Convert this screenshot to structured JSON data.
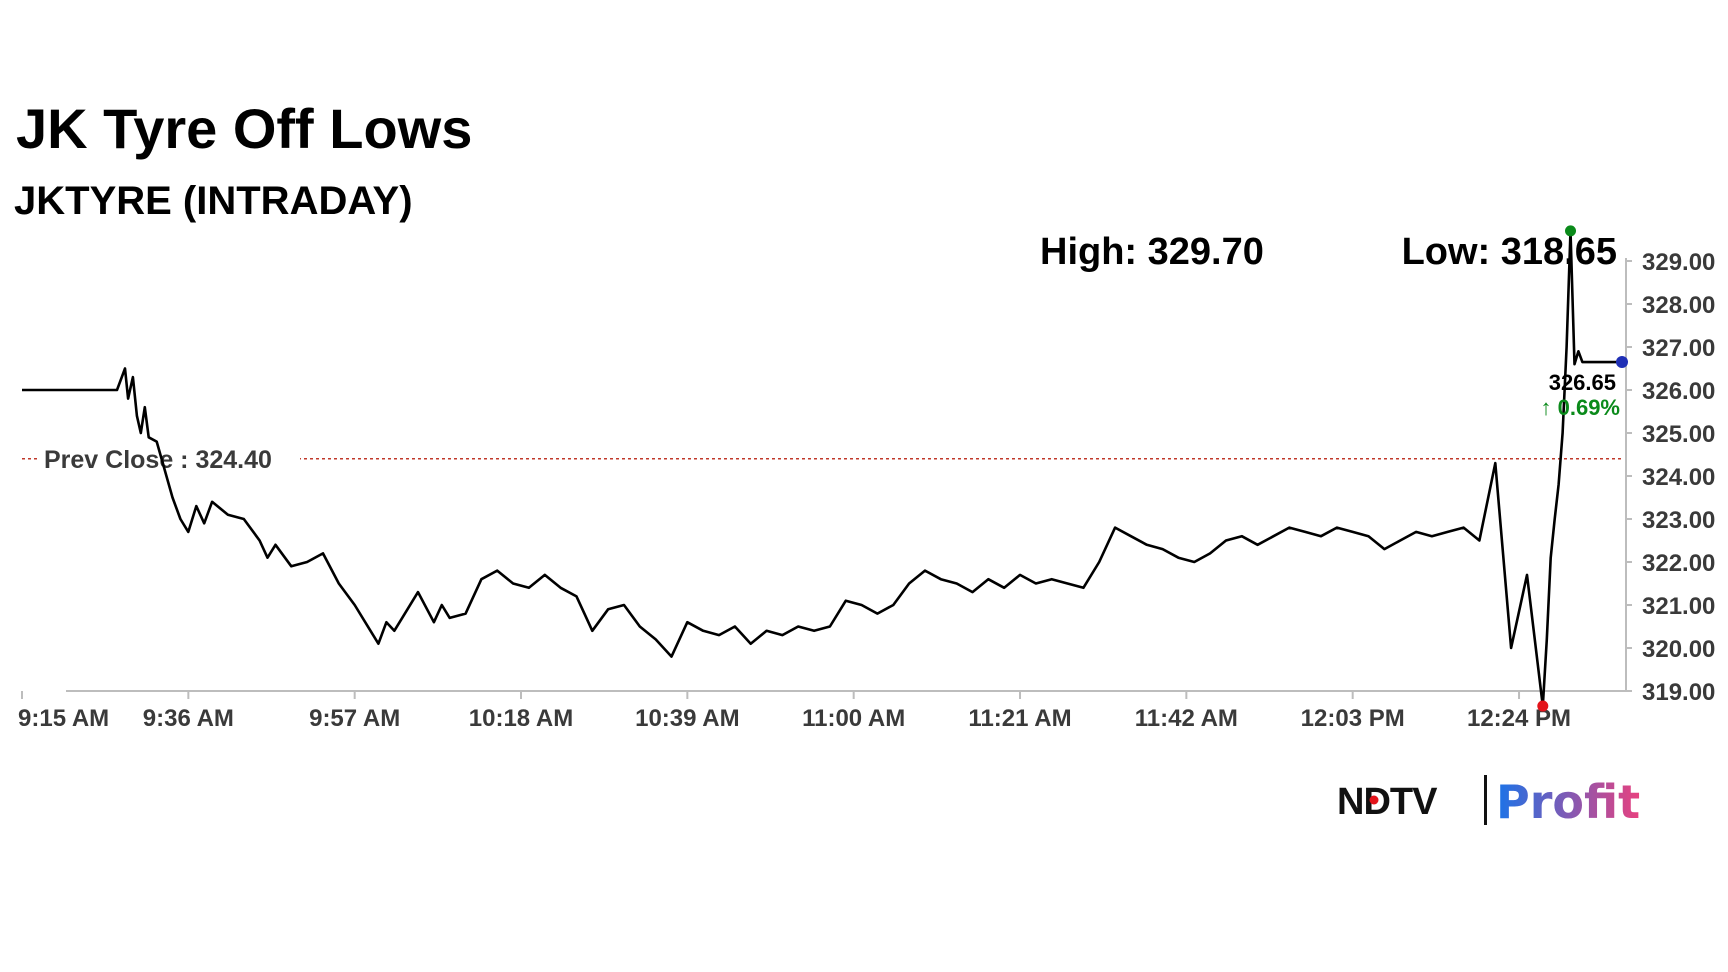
{
  "chart_data": {
    "type": "line",
    "title": "JK Tyre Off Lows",
    "subtitle": "JKTYRE (INTRADAY)",
    "high_label": "High: 329.70",
    "low_label": "Low: 318.65",
    "high": 329.7,
    "low": 318.65,
    "prev_close": 324.4,
    "prev_close_label": "Prev Close : 324.40",
    "last_value_label": "326.65",
    "change_label": "↑ 0.69%",
    "ylim": [
      319.0,
      329.4
    ],
    "y_ticks": [
      "319.00",
      "320.00",
      "321.00",
      "322.00",
      "323.00",
      "324.00",
      "325.00",
      "326.00",
      "327.00",
      "328.00",
      "329.00"
    ],
    "x_ticks": [
      "9:15 AM",
      "9:36 AM",
      "9:57 AM",
      "10:18 AM",
      "10:39 AM",
      "11:00 AM",
      "11:21 AM",
      "11:42 AM",
      "12:03 PM",
      "12:24 PM"
    ],
    "x_range_minutes": [
      0,
      202
    ],
    "grid": false,
    "series": [
      {
        "x": [
          0,
          6,
          12,
          13,
          13.4,
          14,
          14.5,
          15,
          15.5,
          16,
          17,
          19,
          20,
          21,
          22,
          23,
          24,
          26,
          28,
          30,
          31,
          32,
          34,
          36,
          38,
          40,
          42,
          44,
          45,
          46,
          47,
          48,
          50,
          52,
          53,
          54,
          56,
          58,
          60,
          62,
          64,
          66,
          68,
          70,
          71,
          72,
          74,
          76,
          78,
          80,
          82,
          84,
          86,
          88,
          90,
          92,
          94,
          96,
          98,
          100,
          102,
          104,
          106,
          108,
          110,
          112,
          114,
          116,
          118,
          120,
          122,
          124,
          126,
          128,
          130,
          132,
          134,
          136,
          138,
          140,
          142,
          144,
          146,
          148,
          150,
          152,
          154,
          156,
          158,
          160,
          162,
          164,
          166,
          168,
          170,
          172,
          174,
          176,
          178,
          180,
          182,
          184,
          186,
          188,
          190,
          192,
          192.5,
          193,
          193.5,
          194,
          194.5,
          195,
          195.5,
          196,
          196.5,
          197,
          197.5,
          198,
          198.5,
          199,
          199.5,
          200,
          200.5,
          201,
          201.5,
          202
        ],
        "values": [
          326.0,
          326.0,
          326.0,
          326.5,
          325.8,
          326.3,
          325.4,
          325.0,
          325.6,
          324.9,
          324.8,
          323.5,
          323.0,
          322.7,
          323.3,
          322.9,
          323.4,
          323.1,
          323.0,
          322.5,
          322.1,
          322.4,
          321.9,
          322.0,
          322.2,
          321.5,
          321.0,
          320.4,
          320.1,
          320.6,
          320.4,
          320.7,
          321.3,
          320.6,
          321.0,
          320.7,
          320.8,
          321.6,
          321.8,
          321.5,
          321.4,
          321.7,
          321.4,
          321.2,
          320.8,
          320.4,
          320.9,
          321.0,
          320.5,
          320.2,
          319.8,
          320.6,
          320.4,
          320.3,
          320.5,
          320.1,
          320.4,
          320.3,
          320.5,
          320.4,
          320.5,
          321.1,
          321.0,
          320.8,
          321.0,
          321.5,
          321.8,
          321.6,
          321.5,
          321.3,
          321.6,
          321.4,
          321.7,
          321.5,
          321.6,
          321.5,
          321.4,
          322.0,
          322.8,
          322.6,
          322.4,
          322.3,
          322.1,
          322.0,
          322.2,
          322.5,
          322.6,
          322.4,
          322.6,
          322.8,
          322.7,
          322.6,
          322.8,
          322.7,
          322.6,
          322.3,
          322.5,
          322.7,
          322.6,
          322.7,
          322.8,
          322.5,
          324.3,
          320.0,
          321.7,
          318.65,
          320.2,
          322.1,
          323.0,
          323.8,
          325.0,
          327.0,
          329.7,
          326.6,
          326.9,
          326.65,
          326.65,
          326.65,
          326.65,
          326.65,
          326.65,
          326.65,
          326.65,
          326.65,
          326.65,
          326.65
        ]
      }
    ]
  },
  "brand": {
    "ndtv": "NDTV",
    "profit": "Profit"
  },
  "colors": {
    "line": "#000000",
    "prev_close": "#c0392b",
    "high_dot": "#0a8a1a",
    "low_dot": "#e3141b",
    "last_dot": "#1f2fb5",
    "change_up": "#0a8a1a",
    "profit_start": "#1a73e8",
    "profit_end": "#e8417f",
    "axis": "#bdbdbd"
  }
}
